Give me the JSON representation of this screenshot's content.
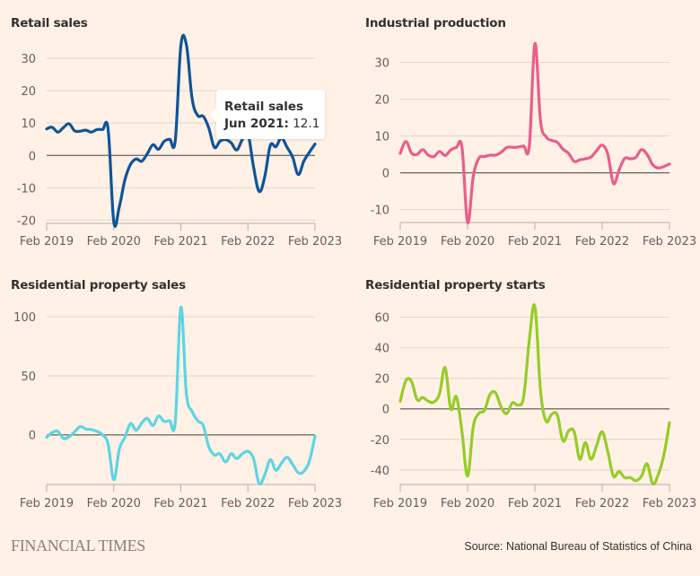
{
  "footer": {
    "logo": "FINANCIAL TIMES",
    "source": "Source: National Bureau of Statistics of China"
  },
  "tooltip": {
    "series": "Retail sales",
    "date": "Jun 2021:",
    "value": "12.1"
  },
  "chart_data": [
    {
      "type": "line",
      "title": "Retail sales",
      "xlabel": "",
      "ylabel": "",
      "x_start": "Feb 2019",
      "x_end": "Feb 2023",
      "x_frequency": "monthly",
      "x_ticks": [
        "Feb 2019",
        "Feb 2020",
        "Feb 2021",
        "Feb 2022",
        "Feb 2023"
      ],
      "y_ticks": [
        30,
        20,
        10,
        0,
        -10,
        -20
      ],
      "ylim": [
        -21,
        35
      ],
      "grid": true,
      "color": "#0f5499",
      "values": [
        8.2,
        8.7,
        7.2,
        8.6,
        9.8,
        7.6,
        7.5,
        7.8,
        7.2,
        8.0,
        8.0,
        8.0,
        -20.5,
        -15.8,
        -7.5,
        -2.8,
        -1.1,
        -1.8,
        0.5,
        3.3,
        1.9,
        4.3,
        5.0,
        4.6,
        33.8,
        34.2,
        17.7,
        12.4,
        12.1,
        8.5,
        2.5,
        4.4,
        4.9,
        3.9,
        1.7,
        4.9,
        6.7,
        -3.5,
        -11.1,
        -6.7,
        3.1,
        2.7,
        5.4,
        2.5,
        -0.5,
        -5.9,
        -1.8,
        1.0,
        3.5
      ],
      "tooltip_point": {
        "date": "Jun 2021",
        "value": 12.1
      }
    },
    {
      "type": "line",
      "title": "Industrial production",
      "xlabel": "",
      "ylabel": "",
      "x_start": "Feb 2019",
      "x_end": "Feb 2023",
      "x_frequency": "monthly",
      "x_ticks": [
        "Feb 2019",
        "Feb 2020",
        "Feb 2021",
        "Feb 2022",
        "Feb 2023"
      ],
      "y_ticks": [
        30,
        20,
        10,
        0,
        -10
      ],
      "ylim": [
        -13.5,
        35
      ],
      "grid": true,
      "color": "#e95d8c",
      "values": [
        5.3,
        8.5,
        5.4,
        5.0,
        6.3,
        4.8,
        4.4,
        5.8,
        4.7,
        6.2,
        6.9,
        6.9,
        -13.5,
        -1.1,
        3.9,
        4.4,
        4.8,
        4.8,
        5.6,
        6.9,
        6.9,
        7.0,
        7.3,
        7.3,
        35.1,
        14.1,
        9.8,
        8.8,
        8.3,
        6.4,
        5.3,
        3.1,
        3.5,
        3.8,
        4.3,
        6.0,
        7.5,
        5.0,
        -2.9,
        0.7,
        3.9,
        3.8,
        4.2,
        6.3,
        5.0,
        2.2,
        1.3,
        1.7,
        2.4
      ]
    },
    {
      "type": "line",
      "title": "Residential property sales",
      "xlabel": "",
      "ylabel": "",
      "x_start": "Feb 2019",
      "x_end": "Feb 2023",
      "x_frequency": "monthly",
      "x_ticks": [
        "Feb 2019",
        "Feb 2020",
        "Feb 2021",
        "Feb 2022",
        "Feb 2023"
      ],
      "y_ticks": [
        100,
        50,
        0
      ],
      "ylim": [
        -42,
        110
      ],
      "grid": true,
      "color": "#5ed4e5",
      "values": [
        -2.0,
        2.0,
        3.0,
        -3.0,
        -1.5,
        2.5,
        7.0,
        5.0,
        4.5,
        3.0,
        0.0,
        -8.0,
        -38.0,
        -12.0,
        -2.0,
        9.5,
        4.0,
        10.0,
        14.0,
        8.0,
        16.0,
        11.5,
        12.0,
        11.0,
        108.0,
        35.0,
        20.0,
        12.0,
        8.0,
        -10.0,
        -17.0,
        -16.0,
        -23.0,
        -16.0,
        -20.0,
        -16.0,
        -14.0,
        -20.0,
        -41.0,
        -34.0,
        -21.0,
        -30.0,
        -24.0,
        -19.0,
        -25.0,
        -32.0,
        -31.0,
        -22.0,
        -1.0
      ]
    },
    {
      "type": "line",
      "title": "Residential property starts",
      "xlabel": "",
      "ylabel": "",
      "x_start": "Feb 2019",
      "x_end": "Feb 2023",
      "x_frequency": "monthly",
      "x_ticks": [
        "Feb 2019",
        "Feb 2020",
        "Feb 2021",
        "Feb 2022",
        "Feb 2023"
      ],
      "y_ticks": [
        60,
        40,
        20,
        0,
        -20,
        -40
      ],
      "ylim": [
        -49.5,
        68
      ],
      "grid": true,
      "color": "#96cc28",
      "values": [
        5.0,
        18.5,
        18.0,
        6.0,
        7.5,
        5.0,
        4.5,
        10.0,
        27.0,
        0.0,
        8.0,
        -15.0,
        -44.0,
        -12.0,
        -3.0,
        -1.0,
        9.5,
        10.5,
        1.0,
        -3.0,
        4.0,
        2.5,
        8.0,
        45.0,
        67.0,
        12.0,
        -8.0,
        -3.5,
        -4.0,
        -21.0,
        -14.5,
        -15.0,
        -33.0,
        -22.0,
        -33.0,
        -24.0,
        -15.0,
        -28.0,
        -44.0,
        -41.0,
        -45.0,
        -45.0,
        -47.0,
        -44.0,
        -36.0,
        -49.0,
        -43.0,
        -30.0,
        -9.0
      ]
    }
  ]
}
